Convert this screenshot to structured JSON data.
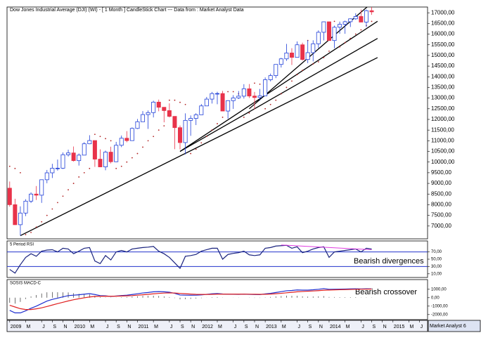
{
  "chart_data": [
    {
      "type": "candlestick",
      "title": "Dow Jones Industrial Average (DJI) (WI) - [ 1 Month ] CandleStick Chart --- Data from : Market Analyst Data",
      "xlim": [
        -0.5,
        78.5
      ],
      "ylim": [
        6400,
        17270
      ],
      "yticks": [
        {
          "value": 7000,
          "label": "7000,00"
        },
        {
          "value": 7500,
          "label": "7500,00"
        },
        {
          "value": 8000,
          "label": "8000,00"
        },
        {
          "value": 8500,
          "label": "8500,00"
        },
        {
          "value": 9000,
          "label": "9000,00"
        },
        {
          "value": 9500,
          "label": "9500,00"
        },
        {
          "value": 10000,
          "label": "10000,00"
        },
        {
          "value": 10500,
          "label": "10500,00"
        },
        {
          "value": 11000,
          "label": "11000,00"
        },
        {
          "value": 11500,
          "label": "11500,00"
        },
        {
          "value": 12000,
          "label": "12000,00"
        },
        {
          "value": 12500,
          "label": "12500,00"
        },
        {
          "value": 13000,
          "label": "13000,00"
        },
        {
          "value": 13500,
          "label": "13500,00"
        },
        {
          "value": 14000,
          "label": "14000,00"
        },
        {
          "value": 14500,
          "label": "14500,00"
        },
        {
          "value": 15000,
          "label": "15000,00"
        },
        {
          "value": 15500,
          "label": "15500,00"
        },
        {
          "value": 16000,
          "label": "16000,00"
        },
        {
          "value": 16500,
          "label": "16500,00"
        },
        {
          "value": 17000,
          "label": "17000,00"
        }
      ],
      "open": [
        8776,
        8001,
        7063,
        7609,
        8168,
        8500,
        8447,
        9172,
        9496,
        9712,
        9713,
        10344,
        10428,
        10067,
        10325,
        10857,
        11009,
        10137,
        9774,
        10466,
        10015,
        10788,
        11118,
        11006,
        11578,
        11892,
        12226,
        12320,
        12811,
        12570,
        12414,
        12143,
        11614,
        10913,
        11955,
        12046,
        12218,
        12633,
        12952,
        13212,
        13214,
        12393,
        12880,
        13009,
        13091,
        13437,
        13096,
        13026,
        13104,
        13861,
        14054,
        14579,
        14840,
        15116,
        14910,
        15500,
        14810,
        15130,
        15546,
        16086,
        16577,
        15699,
        16322,
        16458,
        16581,
        16717,
        16827,
        16563,
        17098
      ],
      "high": [
        9088,
        8280,
        7924,
        8256,
        8578,
        8877,
        9172,
        9630,
        9918,
        10119,
        10450,
        10580,
        10730,
        10403,
        10933,
        11258,
        11009,
        10594,
        10538,
        10720,
        10948,
        11245,
        11451,
        11625,
        12020,
        12391,
        12419,
        12876,
        12929,
        12570,
        12753,
        12143,
        11716,
        12284,
        12187,
        12294,
        12721,
        13055,
        13289,
        13297,
        13338,
        12898,
        13139,
        13330,
        13653,
        13661,
        13290,
        13430,
        13969,
        14149,
        14585,
        14887,
        15542,
        15340,
        15658,
        15598,
        15710,
        15710,
        16175,
        16588,
        16588,
        16399,
        16588,
        16632,
        16736,
        16978,
        17152,
        17153,
        17350
      ],
      "low": [
        7909,
        7050,
        6547,
        7465,
        8078,
        8221,
        8087,
        9008,
        9252,
        9598,
        9679,
        10263,
        10026,
        9835,
        10325,
        10840,
        9774,
        9758,
        9614,
        9937,
        9999,
        10700,
        10929,
        11006,
        11547,
        11892,
        11555,
        12093,
        12381,
        11863,
        12093,
        10604,
        10597,
        10362,
        11231,
        11735,
        12218,
        12630,
        12743,
        12710,
        12392,
        12035,
        12492,
        12956,
        12978,
        13003,
        12471,
        12884,
        13104,
        13784,
        13937,
        14434,
        14746,
        14551,
        14910,
        14760,
        14640,
        14720,
        15340,
        15703,
        15699,
        15340,
        16017,
        16015,
        16334,
        16674,
        16563,
        16333,
        16904
      ],
      "close": [
        8001,
        7063,
        7609,
        8168,
        8500,
        8447,
        9172,
        9496,
        9712,
        9713,
        10344,
        10428,
        10067,
        10325,
        10857,
        11009,
        10137,
        9774,
        10466,
        10015,
        10788,
        11118,
        11006,
        11578,
        11892,
        12226,
        12320,
        12811,
        12570,
        12414,
        12143,
        11614,
        10913,
        11955,
        12046,
        12218,
        12633,
        12952,
        13212,
        13214,
        12393,
        12880,
        13009,
        13091,
        13437,
        13096,
        13026,
        13104,
        13861,
        14054,
        14579,
        14840,
        15116,
        14910,
        15500,
        14810,
        15130,
        15546,
        16086,
        16577,
        15699,
        16322,
        16458,
        16581,
        16717,
        16827,
        16563,
        17098,
        17043
      ],
      "up_color": "#1f3fd8",
      "down_color": "#e8334a",
      "sar": {
        "color": "#b22222",
        "values": [
          9800,
          9700,
          9500,
          6600,
          6700,
          6950,
          7200,
          7500,
          7800,
          8100,
          8400,
          8700,
          9000,
          9300,
          9500,
          9700,
          11300,
          11200,
          11100,
          11000,
          9700,
          9800,
          10000,
          10200,
          10400,
          10700,
          11000,
          11200,
          11500,
          11700,
          12900,
          12900,
          12800,
          12700,
          10400,
          10600,
          10900,
          11200,
          11500,
          11800,
          12100,
          13300,
          13300,
          13200,
          12100,
          12300,
          13700,
          13650,
          12500,
          12700,
          12900,
          13200,
          13500,
          13800,
          14100,
          14300,
          15700,
          14600,
          14700,
          14900,
          15200,
          16600,
          15400,
          15600,
          15800,
          16000,
          16200,
          16400,
          16600
        ]
      },
      "trendline_color": "#000000",
      "trendlines": [
        {
          "x": [
            2,
            69.1
          ],
          "y": [
            6550,
            14900
          ]
        },
        {
          "x": [
            32,
            69.1
          ],
          "y": [
            10500,
            15800
          ]
        },
        {
          "x": [
            32,
            69.1
          ],
          "y": [
            10500,
            16600
          ]
        },
        {
          "x": [
            45,
            67.5
          ],
          "y": [
            12500,
            17350
          ]
        }
      ]
    },
    {
      "type": "line",
      "title": "5 Period RSI",
      "annotation": "Bearish divergences",
      "xlim": [
        -0.5,
        78.5
      ],
      "ylim": [
        0,
        100
      ],
      "yticks": [
        {
          "value": 70,
          "label": "70,00"
        },
        {
          "value": 50,
          "label": "50,00"
        },
        {
          "value": 30,
          "label": "30,00"
        },
        {
          "value": 10,
          "label": "10,00"
        }
      ],
      "levels": [
        70,
        30
      ],
      "level_color": "#2233cc",
      "series": [
        {
          "color": "#1a237e",
          "values": [
            22,
            12,
            35,
            55,
            65,
            58,
            72,
            75,
            76,
            70,
            80,
            78,
            65,
            72,
            80,
            82,
            45,
            38,
            60,
            48,
            70,
            74,
            70,
            78,
            80,
            82,
            83,
            85,
            72,
            65,
            55,
            40,
            25,
            58,
            60,
            63,
            72,
            76,
            80,
            80,
            50,
            63,
            66,
            68,
            72,
            62,
            60,
            62,
            80,
            82,
            86,
            87,
            88,
            80,
            84,
            68,
            72,
            78,
            82,
            84,
            55,
            70,
            72,
            74,
            76,
            78,
            70,
            80,
            78
          ]
        }
      ],
      "divergence": {
        "x": [
          51,
          68
        ],
        "y": [
          89,
          76
        ],
        "color": "#e03ce0"
      }
    },
    {
      "type": "macd",
      "title": "SOSIS MACD-C",
      "annotation": "Bearish crossover",
      "xlim": [
        -0.5,
        78.5
      ],
      "ylim": [
        -2600,
        2150
      ],
      "yticks": [
        {
          "value": 1000,
          "label": "1000,00"
        },
        {
          "value": 0,
          "label": "0,00"
        },
        {
          "value": -1000,
          "label": "-1000,00"
        },
        {
          "value": -2000,
          "label": "-2000,00"
        }
      ],
      "series": [
        {
          "color": "#1f2fd0",
          "values": [
            -1500,
            -1800,
            -1800,
            -1550,
            -1250,
            -1000,
            -700,
            -400,
            -200,
            -50,
            100,
            250,
            300,
            350,
            420,
            480,
            380,
            250,
            220,
            150,
            200,
            260,
            300,
            380,
            470,
            560,
            620,
            700,
            720,
            700,
            650,
            520,
            320,
            300,
            290,
            300,
            340,
            400,
            460,
            500,
            440,
            420,
            410,
            400,
            420,
            400,
            380,
            370,
            450,
            520,
            620,
            720,
            820,
            860,
            920,
            900,
            900,
            940,
            1000,
            1080,
            1000,
            1010,
            1020,
            1030,
            1050,
            1060,
            1040,
            1060,
            1050
          ]
        },
        {
          "color": "#e02020",
          "values": [
            -900,
            -1100,
            -1300,
            -1400,
            -1400,
            -1320,
            -1200,
            -1040,
            -870,
            -700,
            -540,
            -380,
            -240,
            -120,
            -10,
            90,
            150,
            170,
            180,
            170,
            180,
            200,
            220,
            250,
            300,
            350,
            400,
            460,
            510,
            550,
            570,
            560,
            510,
            470,
            430,
            400,
            390,
            390,
            400,
            420,
            420,
            420,
            420,
            420,
            420,
            415,
            410,
            400,
            410,
            430,
            470,
            520,
            580,
            640,
            700,
            740,
            770,
            800,
            840,
            890,
            910,
            930,
            950,
            965,
            985,
            1000,
            1010,
            1020,
            1025
          ]
        }
      ],
      "histogram": {
        "color": "#333333",
        "values": [
          -600,
          -700,
          -500,
          -150,
          150,
          320,
          500,
          640,
          670,
          650,
          640,
          630,
          540,
          470,
          430,
          390,
          230,
          80,
          40,
          -20,
          20,
          60,
          80,
          130,
          170,
          210,
          220,
          240,
          210,
          150,
          80,
          -40,
          -190,
          -170,
          -140,
          -100,
          -50,
          10,
          60,
          80,
          20,
          0,
          -10,
          -20,
          0,
          -15,
          -30,
          -30,
          40,
          90,
          150,
          200,
          240,
          220,
          220,
          160,
          130,
          140,
          160,
          190,
          90,
          80,
          70,
          65,
          65,
          60,
          30,
          40,
          25
        ]
      },
      "xticks": [
        {
          "value": 0,
          "label": "2009"
        },
        {
          "value": 3,
          "label": "M"
        },
        {
          "value": 6,
          "label": "J"
        },
        {
          "value": 8,
          "label": "S"
        },
        {
          "value": 10,
          "label": "N"
        },
        {
          "value": 12,
          "label": "2010"
        },
        {
          "value": 15,
          "label": "M"
        },
        {
          "value": 18,
          "label": "J"
        },
        {
          "value": 20,
          "label": "S"
        },
        {
          "value": 22,
          "label": "N"
        },
        {
          "value": 24,
          "label": "2011"
        },
        {
          "value": 27,
          "label": "M"
        },
        {
          "value": 30,
          "label": "J"
        },
        {
          "value": 32,
          "label": "S"
        },
        {
          "value": 34,
          "label": "N"
        },
        {
          "value": 36,
          "label": "2012"
        },
        {
          "value": 39,
          "label": "M"
        },
        {
          "value": 42,
          "label": "J"
        },
        {
          "value": 44,
          "label": "S"
        },
        {
          "value": 46,
          "label": "N"
        },
        {
          "value": 48,
          "label": "2013"
        },
        {
          "value": 51,
          "label": "M"
        },
        {
          "value": 54,
          "label": "J"
        },
        {
          "value": 56,
          "label": "S"
        },
        {
          "value": 58,
          "label": "N"
        },
        {
          "value": 60,
          "label": "2014"
        },
        {
          "value": 63,
          "label": "M"
        },
        {
          "value": 66,
          "label": "J"
        },
        {
          "value": 68,
          "label": "S"
        },
        {
          "value": 70,
          "label": "N"
        },
        {
          "value": 72,
          "label": "2015"
        },
        {
          "value": 75,
          "label": "M"
        },
        {
          "value": 77,
          "label": "J"
        }
      ],
      "footer": "Market Analyst 6"
    }
  ]
}
